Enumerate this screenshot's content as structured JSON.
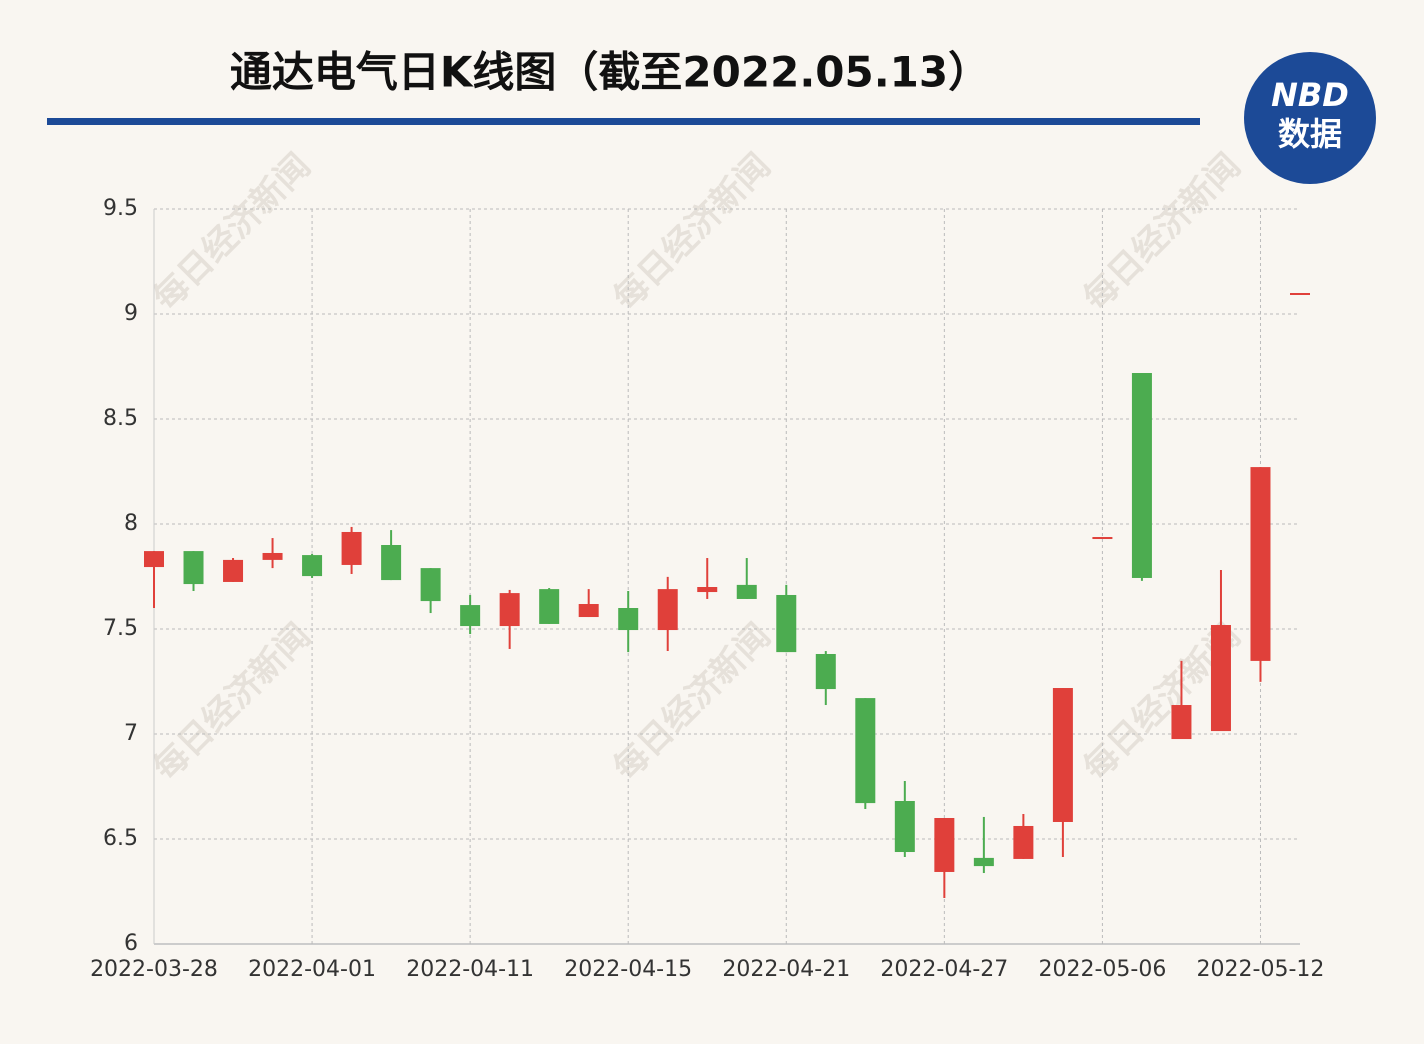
{
  "chart_data": {
    "type": "candlestick",
    "title": "通达电气日K线图（截至2022.05.13）",
    "watermark": "每日经济新闻",
    "logo": {
      "top": "NBD",
      "bottom": "数据"
    },
    "categories": [
      "2022-03-28",
      null,
      null,
      null,
      "2022-04-01",
      null,
      null,
      null,
      "2022-04-11",
      null,
      null,
      null,
      "2022-04-15",
      null,
      null,
      null,
      "2022-04-21",
      null,
      null,
      null,
      "2022-04-27",
      null,
      null,
      null,
      "2022-05-06",
      null,
      null,
      null,
      "2022-05-12",
      null
    ],
    "open": [
      7.795,
      7.871,
      7.724,
      7.829,
      7.852,
      7.805,
      7.9,
      7.79,
      7.614,
      7.514,
      7.69,
      7.557,
      7.6,
      7.495,
      7.676,
      7.71,
      7.662,
      7.381,
      7.171,
      6.681,
      6.343,
      6.41,
      6.405,
      6.581,
      7.938,
      8.719,
      6.976,
      7.014,
      7.348,
      9.1
    ],
    "high": [
      7.871,
      7.871,
      7.838,
      7.933,
      7.857,
      7.986,
      7.971,
      7.79,
      7.662,
      7.686,
      7.695,
      7.69,
      7.681,
      7.748,
      7.838,
      7.838,
      7.71,
      7.395,
      7.171,
      6.776,
      6.6,
      6.605,
      6.619,
      7.219,
      7.938,
      8.719,
      7.348,
      7.781,
      8.271,
      9.1
    ],
    "low": [
      7.6,
      7.681,
      7.724,
      7.79,
      7.743,
      7.762,
      7.733,
      7.576,
      7.476,
      7.405,
      7.524,
      7.557,
      7.39,
      7.395,
      7.643,
      7.643,
      7.39,
      7.138,
      6.643,
      6.414,
      6.219,
      6.338,
      6.405,
      6.414,
      7.938,
      7.729,
      6.976,
      7.014,
      7.248,
      9.1
    ],
    "close": [
      7.871,
      7.714,
      7.829,
      7.862,
      7.752,
      7.962,
      7.733,
      7.633,
      7.514,
      7.671,
      7.524,
      7.619,
      7.495,
      7.69,
      7.7,
      7.643,
      7.39,
      7.214,
      6.671,
      6.438,
      6.6,
      6.371,
      6.562,
      7.219,
      7.938,
      7.743,
      7.138,
      7.519,
      8.271,
      9.1
    ],
    "up_color": "#e0403a",
    "down_color": "#4cac50",
    "ylim": [
      6,
      9.5
    ],
    "yticks": [
      6,
      6.5,
      7,
      7.5,
      8,
      8.5,
      9,
      9.5
    ],
    "grid": true
  }
}
